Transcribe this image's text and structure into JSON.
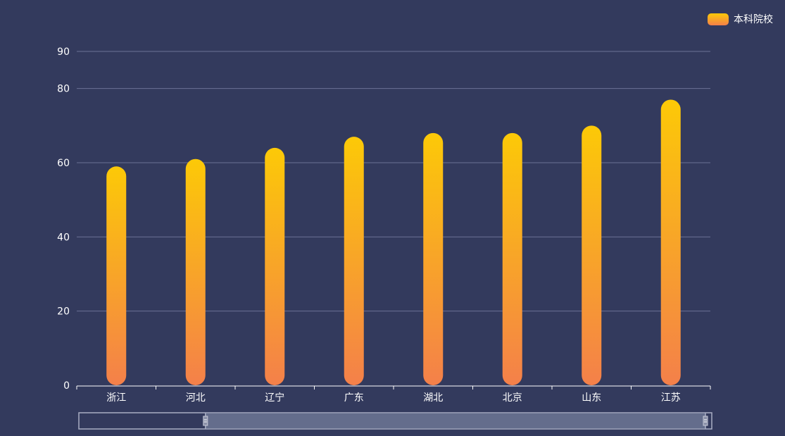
{
  "chart_data": {
    "type": "bar",
    "categories": [
      "浙江",
      "河北",
      "辽宁",
      "广东",
      "湖北",
      "北京",
      "山东",
      "江苏"
    ],
    "series": [
      {
        "name": "本科院校",
        "values": [
          59,
          61,
          64,
          67,
          68,
          68,
          70,
          77
        ]
      }
    ],
    "yticks": [
      0,
      20,
      40,
      60,
      80,
      90
    ],
    "ylim": [
      0,
      90
    ],
    "grid": true,
    "legend": "top-right",
    "gradient_top": "#fcc907",
    "gradient_bottom": "#f4804a",
    "data_zoom": {
      "start": 0.2,
      "end": 0.99
    }
  },
  "colors": {
    "background": "#333a5d",
    "grid": "#6b7195",
    "axis": "#ffffff",
    "zoom_fill": "#646d8c",
    "zoom_border": "#a9aec4"
  }
}
